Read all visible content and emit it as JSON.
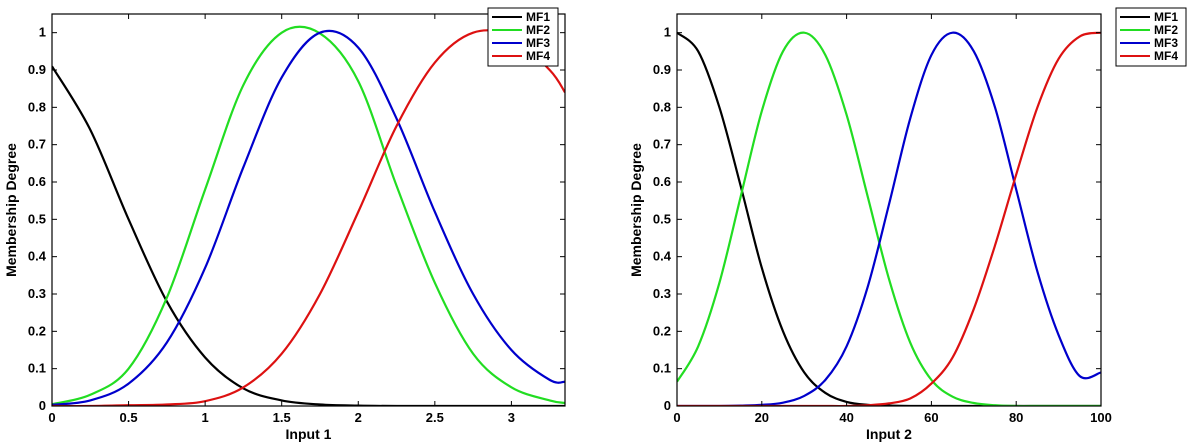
{
  "chart_data": [
    {
      "type": "line",
      "xlabel": "Input 1",
      "ylabel": "Membership Degree",
      "xlim": [
        0,
        3.35
      ],
      "ylim": [
        0,
        1.05
      ],
      "xticks": [
        "0",
        "0.5",
        "1",
        "1.5",
        "2",
        "2.5",
        "3"
      ],
      "yticks": [
        "0",
        "0.1",
        "0.2",
        "0.3",
        "0.4",
        "0.5",
        "0.6",
        "0.7",
        "0.8",
        "0.9",
        "1"
      ],
      "grid": false,
      "legend": "outside-top-right",
      "x": [
        0,
        0.25,
        0.5,
        0.75,
        1.0,
        1.25,
        1.5,
        1.75,
        2.0,
        2.25,
        2.5,
        2.75,
        3.0,
        3.25,
        3.35
      ],
      "series": [
        {
          "name": "MF1",
          "color": "#000000",
          "values": [
            0.91,
            0.74,
            0.5,
            0.28,
            0.13,
            0.047,
            0.015,
            0.004,
            0.001,
            0,
            0,
            0,
            0,
            0,
            0
          ]
        },
        {
          "name": "MF2",
          "color": "#22dd22",
          "values": [
            0.005,
            0.03,
            0.1,
            0.29,
            0.58,
            0.86,
            1.0,
            0.998,
            0.87,
            0.59,
            0.33,
            0.14,
            0.05,
            0.015,
            0.008
          ]
        },
        {
          "name": "MF3",
          "color": "#0000cc",
          "values": [
            0.003,
            0.015,
            0.06,
            0.17,
            0.37,
            0.64,
            0.88,
            1.0,
            0.96,
            0.77,
            0.52,
            0.3,
            0.15,
            0.07,
            0.065
          ]
        },
        {
          "name": "MF4",
          "color": "#dd1111",
          "values": [
            0,
            0,
            0.002,
            0.004,
            0.013,
            0.05,
            0.14,
            0.3,
            0.52,
            0.75,
            0.92,
            1.0,
            0.99,
            0.9,
            0.84
          ]
        }
      ]
    },
    {
      "type": "line",
      "xlabel": "Input 2",
      "ylabel": "Membership Degree",
      "xlim": [
        0,
        100
      ],
      "ylim": [
        0,
        1.05
      ],
      "xticks": [
        "0",
        "20",
        "40",
        "60",
        "80",
        "100"
      ],
      "yticks": [
        "0",
        "0.1",
        "0.2",
        "0.3",
        "0.4",
        "0.5",
        "0.6",
        "0.7",
        "0.8",
        "0.9",
        "1"
      ],
      "grid": false,
      "legend": "outside-top-right",
      "x": [
        0,
        5,
        10,
        15,
        20,
        25,
        30,
        35,
        40,
        45,
        50,
        55,
        60,
        65,
        70,
        75,
        80,
        85,
        90,
        95,
        100
      ],
      "series": [
        {
          "name": "MF1",
          "color": "#000000",
          "values": [
            1.0,
            0.95,
            0.8,
            0.59,
            0.37,
            0.2,
            0.09,
            0.035,
            0.011,
            0.003,
            0.001,
            0,
            0,
            0,
            0,
            0,
            0,
            0,
            0,
            0,
            0
          ]
        },
        {
          "name": "MF2",
          "color": "#22dd22",
          "values": [
            0.065,
            0.16,
            0.33,
            0.56,
            0.79,
            0.95,
            1.0,
            0.94,
            0.78,
            0.56,
            0.34,
            0.17,
            0.07,
            0.025,
            0.008,
            0.002,
            0,
            0,
            0,
            0,
            0
          ]
        },
        {
          "name": "MF3",
          "color": "#0000cc",
          "values": [
            0,
            0,
            0,
            0.001,
            0.003,
            0.009,
            0.027,
            0.07,
            0.16,
            0.32,
            0.54,
            0.77,
            0.94,
            1.0,
            0.95,
            0.8,
            0.58,
            0.36,
            0.19,
            0.08,
            0.09
          ]
        },
        {
          "name": "MF4",
          "color": "#dd1111",
          "values": [
            0,
            0,
            0,
            0,
            0,
            0,
            0,
            0,
            0,
            0.002,
            0.007,
            0.02,
            0.06,
            0.13,
            0.26,
            0.43,
            0.62,
            0.8,
            0.93,
            0.99,
            1.0
          ]
        }
      ]
    }
  ]
}
